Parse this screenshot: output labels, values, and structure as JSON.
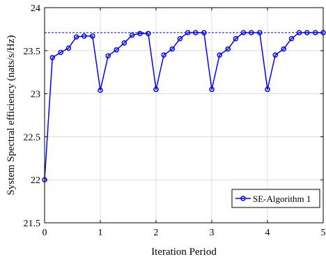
{
  "chart_data": {
    "type": "line",
    "title": "",
    "xlabel": "Iteration Period",
    "ylabel": "System Spectral efficiency (nats/s/Hz)",
    "xlim": [
      0,
      5
    ],
    "ylim": [
      21.5,
      24
    ],
    "xticks": [
      0,
      1,
      2,
      3,
      4,
      5
    ],
    "yticks": [
      21.5,
      22,
      22.5,
      23,
      23.5,
      24
    ],
    "xtick_labels": [
      "0",
      "1",
      "2",
      "3",
      "4",
      "5"
    ],
    "ytick_labels": [
      "21.5",
      "22",
      "22.5",
      "23",
      "23.5",
      "24"
    ],
    "grid": true,
    "legend_position": "lower-right",
    "series": [
      {
        "name": "SE-Algorithm 1",
        "color": "#0000ff",
        "marker": "circle",
        "x": [
          0,
          0.14,
          0.29,
          0.43,
          0.57,
          0.71,
          0.86,
          1.0,
          1.14,
          1.29,
          1.43,
          1.57,
          1.71,
          1.86,
          2.0,
          2.14,
          2.29,
          2.43,
          2.57,
          2.71,
          2.86,
          3.0,
          3.14,
          3.29,
          3.43,
          3.57,
          3.71,
          3.86,
          4.0,
          4.14,
          4.29,
          4.43,
          4.57,
          4.71,
          4.86,
          5.0
        ],
        "values": [
          22.0,
          23.42,
          23.48,
          23.53,
          23.66,
          23.67,
          23.67,
          23.04,
          23.44,
          23.51,
          23.59,
          23.68,
          23.7,
          23.7,
          23.05,
          23.45,
          23.52,
          23.64,
          23.71,
          23.71,
          23.71,
          23.05,
          23.45,
          23.52,
          23.64,
          23.71,
          23.71,
          23.71,
          23.05,
          23.45,
          23.52,
          23.64,
          23.71,
          23.71,
          23.71,
          23.71
        ]
      }
    ],
    "reference_line": {
      "y": 23.71,
      "color": "#0000cd",
      "style": "dashed"
    }
  }
}
